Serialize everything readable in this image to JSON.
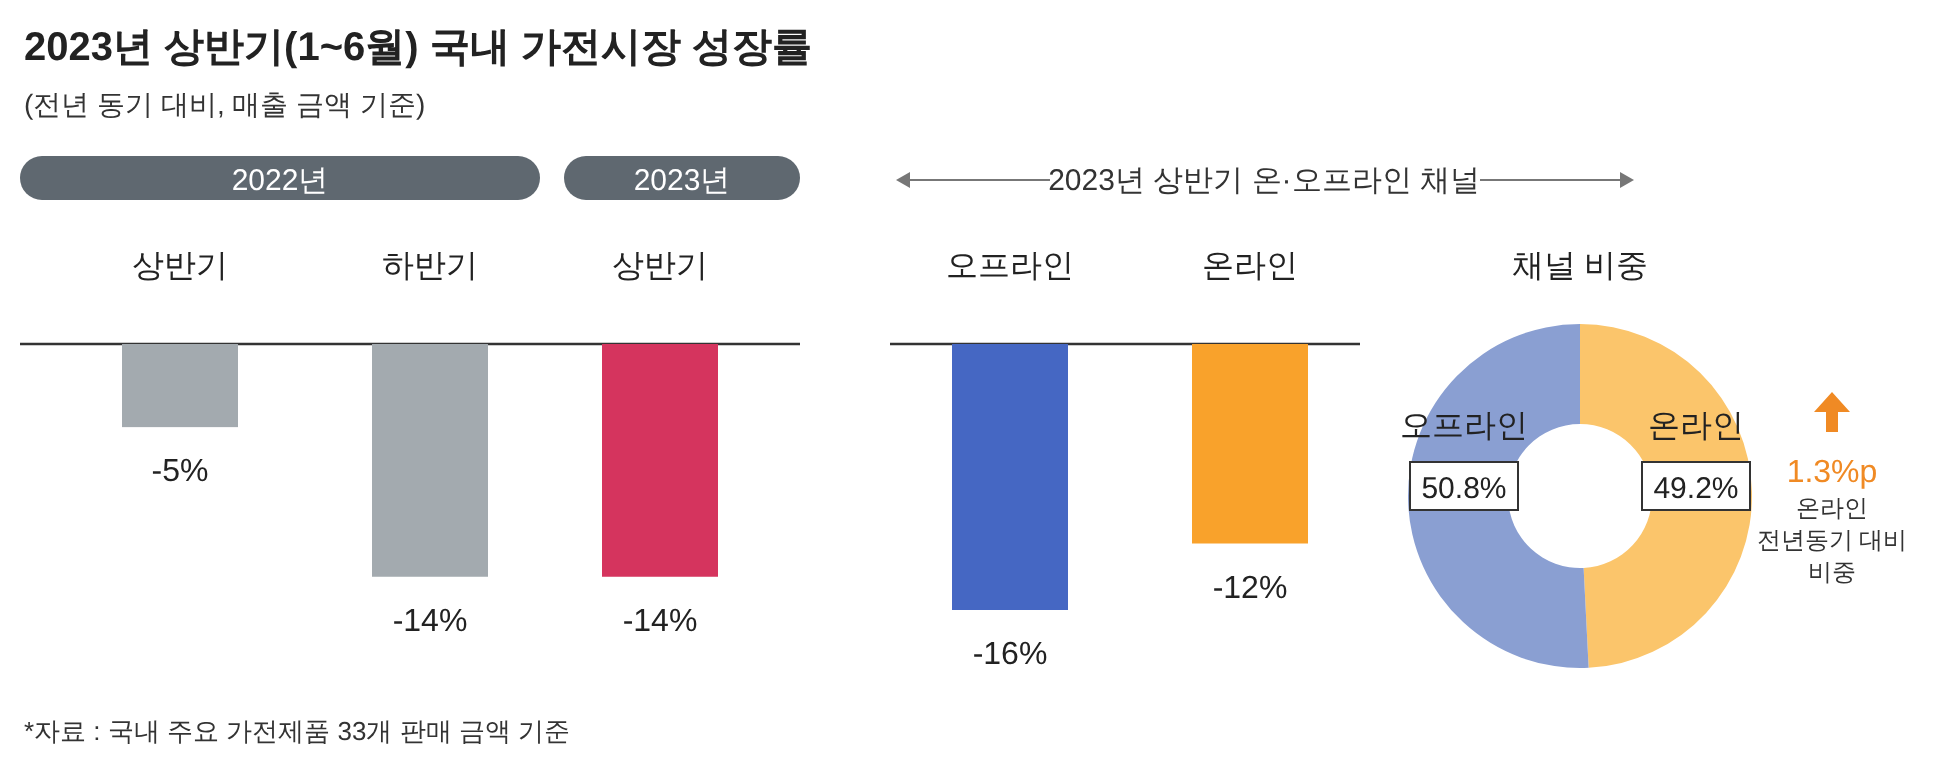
{
  "chart_data": [
    {
      "type": "bar",
      "title": "2023년 상반기(1~6월) 국내 가전시장 성장률",
      "subtitle": "(전년 동기 대비, 매출 금액 기준)",
      "categories": [
        "상반기",
        "하반기",
        "상반기"
      ],
      "values": [
        -5,
        -14,
        -14
      ],
      "colors": [
        "#a3aaaf",
        "#a3aaaf",
        "#d5345e"
      ],
      "value_labels": [
        "-5%",
        "-14%",
        "-14%"
      ],
      "annotations": [
        "2022년",
        "2023년",
        "*자료 : 국내 주요 가전제품 33개 판매 금액 기준"
      ]
    },
    {
      "type": "bar",
      "title": "2023년 상반기 온·오프라인 채널",
      "categories": [
        "오프라인",
        "온라인"
      ],
      "values": [
        -16,
        -12
      ],
      "colors": [
        "#4567c3",
        "#f9a22b"
      ],
      "value_labels": [
        "-16%",
        "-12%"
      ]
    },
    {
      "type": "donut",
      "title": "채널 비중",
      "categories": [
        "오프라인",
        "온라인"
      ],
      "values": [
        50.8,
        49.2
      ],
      "colors": [
        "#8a9fd2",
        "#fbc56b"
      ],
      "value_labels": [
        "50.8%",
        "49.2%"
      ],
      "annotations": [
        "1.3%p",
        "온라인",
        "전년동기 대비",
        "비중"
      ]
    }
  ]
}
